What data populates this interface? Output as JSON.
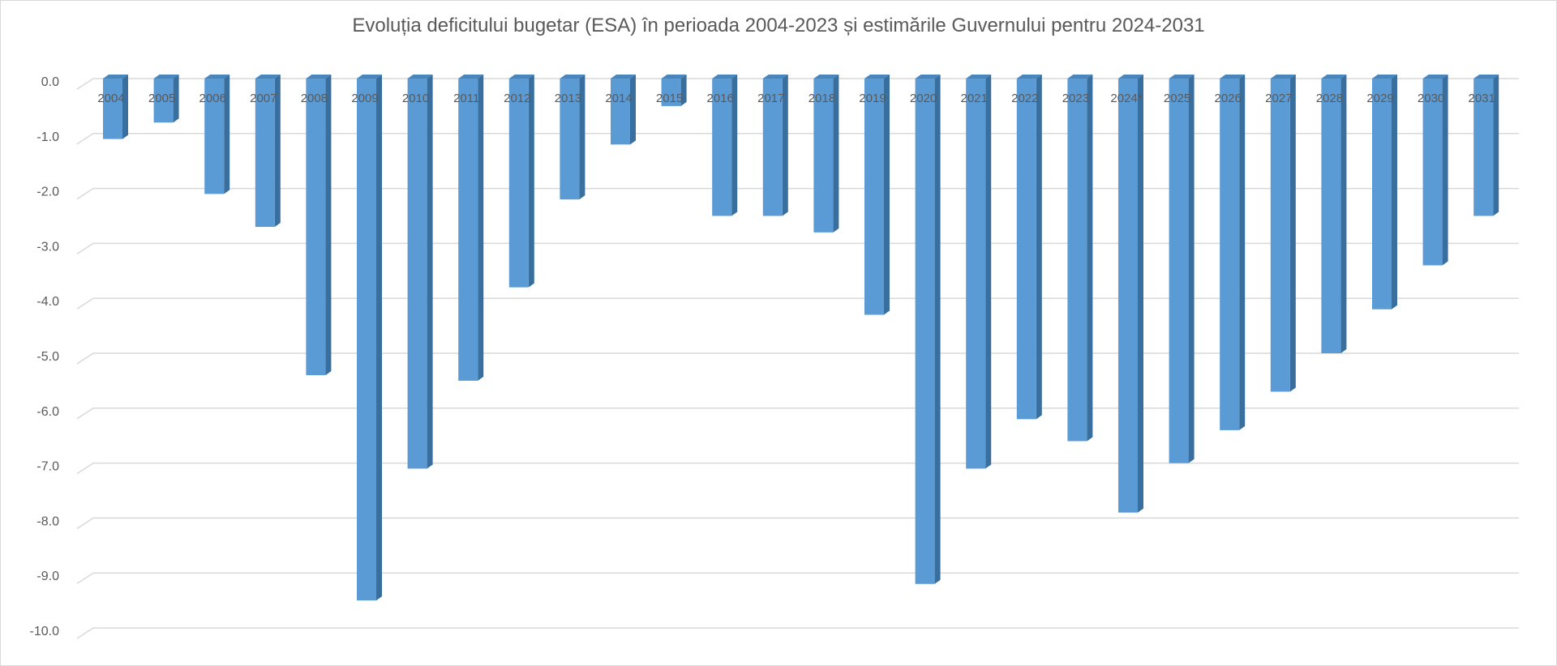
{
  "chart_data": {
    "type": "bar",
    "title": "Evoluția deficitului bugetar (ESA) în perioada 2004-2023 și estimările Guvernului pentru 2024-2031",
    "xlabel": "",
    "ylabel": "",
    "ylim": [
      -10,
      0
    ],
    "yticks": [
      "0.0",
      "-1.0",
      "-2.0",
      "-3.0",
      "-4.0",
      "-5.0",
      "-6.0",
      "-7.0",
      "-8.0",
      "-9.0",
      "-10.0"
    ],
    "grid": true,
    "categories": [
      "2004",
      "2005",
      "2006",
      "2007",
      "2008",
      "2009",
      "2010",
      "2011",
      "2012",
      "2013",
      "2014",
      "2015",
      "2016",
      "2017",
      "2018",
      "2019",
      "2020",
      "2021",
      "2022",
      "2023",
      "2024*",
      "2025",
      "2026",
      "2027",
      "2028",
      "2029",
      "2030",
      "2031"
    ],
    "values": [
      -1.1,
      -0.8,
      -2.1,
      -2.7,
      -5.4,
      -9.5,
      -7.1,
      -5.5,
      -3.8,
      -2.2,
      -1.2,
      -0.5,
      -2.5,
      -2.5,
      -2.8,
      -4.3,
      -9.2,
      -7.1,
      -6.2,
      -6.6,
      -7.9,
      -7.0,
      -6.4,
      -5.7,
      -5.0,
      -4.2,
      -3.4,
      -2.5
    ],
    "colors": {
      "bar_front": "#5b9bd5",
      "bar_side": "#386f9e",
      "bar_top": "#4a85bb",
      "gridline": "#d9d9d9",
      "text": "#595959"
    }
  }
}
